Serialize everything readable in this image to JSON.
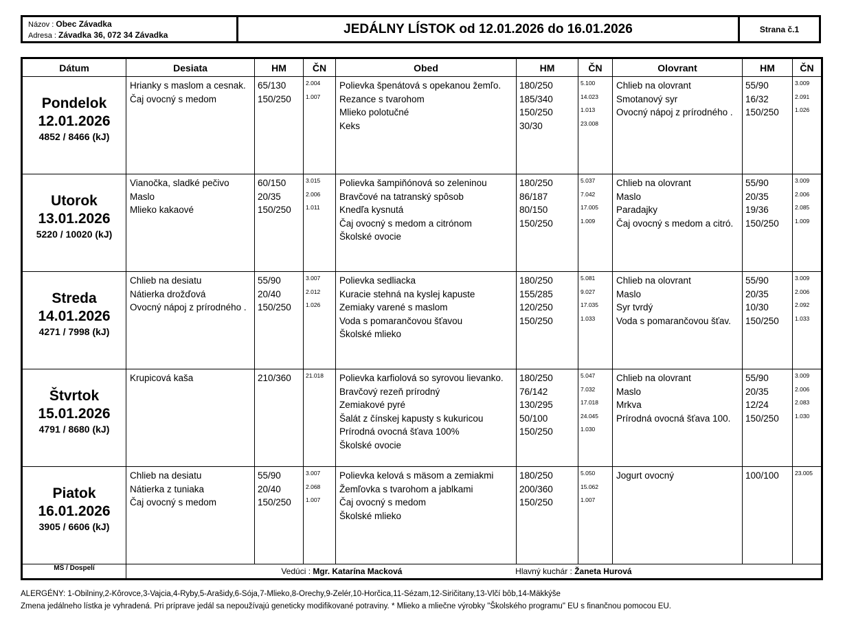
{
  "header": {
    "name_label": "Názov :",
    "name_value": "Obec Závadka",
    "address_label": "Adresa :",
    "address_value": "Závadka 36, 072 34 Závadka",
    "title": "JEDÁLNY LÍSTOK od 12.01.2026 do 16.01.2026",
    "page": "Strana č.1"
  },
  "table": {
    "columns": [
      "Dátum",
      "Desiata",
      "HM",
      "ČN",
      "Obed",
      "HM",
      "ČN",
      "Olovrant",
      "HM",
      "ČN"
    ],
    "days": [
      {
        "day": "Pondelok",
        "date": "12.01.2026",
        "energy": "4852 / 8466 (kJ)",
        "desiata": [
          {
            "name": "Hrianky s maslom a cesnak.",
            "hm": "65/130",
            "cn": "2.004"
          },
          {
            "name": "Čaj ovocný s medom",
            "hm": "150/250",
            "cn": "1.007"
          }
        ],
        "obed": [
          {
            "name": "Polievka špenátová s opekanou žemľo.",
            "hm": "180/250",
            "cn": "5.100"
          },
          {
            "name": "Rezance s tvarohom",
            "hm": "185/340",
            "cn": "14.023"
          },
          {
            "name": "Mlieko polotučné",
            "hm": "150/250",
            "cn": "1.013"
          },
          {
            "name": "Keks",
            "hm": "30/30",
            "cn": "23.008"
          }
        ],
        "olovrant": [
          {
            "name": "Chlieb na olovrant",
            "hm": "55/90",
            "cn": "3.009"
          },
          {
            "name": "Smotanový syr",
            "hm": "16/32",
            "cn": "2.091"
          },
          {
            "name": "Ovocný nápoj z prírodného .",
            "hm": "150/250",
            "cn": "1.026"
          }
        ]
      },
      {
        "day": "Utorok",
        "date": "13.01.2026",
        "energy": "5220 / 10020 (kJ)",
        "desiata": [
          {
            "name": "Vianočka, sladké pečivo",
            "hm": "60/150",
            "cn": "3.015"
          },
          {
            "name": "Maslo",
            "hm": "20/35",
            "cn": "2.006"
          },
          {
            "name": "Mlieko kakaové",
            "hm": "150/250",
            "cn": "1.011"
          }
        ],
        "obed": [
          {
            "name": "Polievka šampiňónová so zeleninou",
            "hm": "180/250",
            "cn": "5.037"
          },
          {
            "name": "Bravčové na tatranský spôsob",
            "hm": "86/187",
            "cn": "7.042"
          },
          {
            "name": "Knedľa kysnutá",
            "hm": "80/150",
            "cn": "17.005"
          },
          {
            "name": "Čaj ovocný s medom a citrónom",
            "hm": "150/250",
            "cn": "1.009"
          },
          {
            "name": "Školské ovocie",
            "hm": "",
            "cn": ""
          }
        ],
        "olovrant": [
          {
            "name": "Chlieb na olovrant",
            "hm": "55/90",
            "cn": "3.009"
          },
          {
            "name": "Maslo",
            "hm": "20/35",
            "cn": "2.006"
          },
          {
            "name": "Paradajky",
            "hm": "19/36",
            "cn": "2.085"
          },
          {
            "name": "Čaj ovocný s medom a citró.",
            "hm": "150/250",
            "cn": "1.009"
          }
        ]
      },
      {
        "day": "Streda",
        "date": "14.01.2026",
        "energy": "4271 / 7998 (kJ)",
        "desiata": [
          {
            "name": "Chlieb na desiatu",
            "hm": "55/90",
            "cn": "3.007"
          },
          {
            "name": "Nátierka drožďová",
            "hm": "20/40",
            "cn": "2.012"
          },
          {
            "name": "Ovocný nápoj z prírodného .",
            "hm": "150/250",
            "cn": "1.026"
          }
        ],
        "obed": [
          {
            "name": "Polievka sedliacka",
            "hm": "180/250",
            "cn": "5.081"
          },
          {
            "name": "Kuracie stehná na kyslej kapuste",
            "hm": "155/285",
            "cn": "9.027"
          },
          {
            "name": "Zemiaky varené s maslom",
            "hm": "120/250",
            "cn": "17.035"
          },
          {
            "name": "Voda s pomarančovou šťavou",
            "hm": "150/250",
            "cn": "1.033"
          },
          {
            "name": "Školské mlieko",
            "hm": "",
            "cn": ""
          }
        ],
        "olovrant": [
          {
            "name": "Chlieb na olovrant",
            "hm": "55/90",
            "cn": "3.009"
          },
          {
            "name": "Maslo",
            "hm": "20/35",
            "cn": "2.006"
          },
          {
            "name": "Syr tvrdý",
            "hm": "10/30",
            "cn": "2.092"
          },
          {
            "name": "Voda s pomarančovou šťav.",
            "hm": "150/250",
            "cn": "1.033"
          }
        ]
      },
      {
        "day": "Štvrtok",
        "date": "15.01.2026",
        "energy": "4791 / 8680 (kJ)",
        "desiata": [
          {
            "name": "Krupicová kaša",
            "hm": "210/360",
            "cn": "21.018"
          }
        ],
        "obed": [
          {
            "name": "Polievka karfiolová so syrovou lievanko.",
            "hm": "180/250",
            "cn": "5.047"
          },
          {
            "name": "Bravčový rezeň prírodný",
            "hm": "76/142",
            "cn": "7.032"
          },
          {
            "name": "Zemiakové pyré",
            "hm": "130/295",
            "cn": "17.018"
          },
          {
            "name": "Šalát z čínskej kapusty s kukuricou",
            "hm": "50/100",
            "cn": "24.045"
          },
          {
            "name": "Prírodná ovocná šťava 100%",
            "hm": "150/250",
            "cn": "1.030"
          },
          {
            "name": "Školské ovocie",
            "hm": "",
            "cn": ""
          }
        ],
        "olovrant": [
          {
            "name": "Chlieb na olovrant",
            "hm": "55/90",
            "cn": "3.009"
          },
          {
            "name": "Maslo",
            "hm": "20/35",
            "cn": "2.006"
          },
          {
            "name": "Mrkva",
            "hm": "12/24",
            "cn": "2.083"
          },
          {
            "name": "Prírodná ovocná šťava 100.",
            "hm": "150/250",
            "cn": "1.030"
          }
        ]
      },
      {
        "day": "Piatok",
        "date": "16.01.2026",
        "energy": "3905 / 6606 (kJ)",
        "desiata": [
          {
            "name": "Chlieb na desiatu",
            "hm": "55/90",
            "cn": "3.007"
          },
          {
            "name": "Nátierka z tuniaka",
            "hm": "20/40",
            "cn": "2.068"
          },
          {
            "name": "Čaj ovocný s medom",
            "hm": "150/250",
            "cn": "1.007"
          }
        ],
        "obed": [
          {
            "name": "Polievka kelová s mäsom a zemiakmi",
            "hm": "180/250",
            "cn": "5.050"
          },
          {
            "name": "Žemľovka s tvarohom a jablkami",
            "hm": "200/360",
            "cn": "15.062"
          },
          {
            "name": "Čaj ovocný s medom",
            "hm": "150/250",
            "cn": "1.007"
          },
          {
            "name": "Školské mlieko",
            "hm": "",
            "cn": ""
          }
        ],
        "olovrant": [
          {
            "name": "Jogurt ovocný",
            "hm": "100/100",
            "cn": "23.005"
          }
        ]
      }
    ],
    "footer": {
      "left": "MŠ / Dospelí",
      "manager_label": "Vedúci :",
      "manager_name": "Mgr. Katarína Macková",
      "chef_label": "Hlavný kuchár :",
      "chef_name": "Žaneta Hurová"
    }
  },
  "notes": {
    "allergens": "ALERGÉNY: 1-Obilniny,2-Kôrovce,3-Vajcia,4-Ryby,5-Arašidy,6-Sója,7-Mlieko,8-Orechy,9-Zelér,10-Horčica,11-Sézam,12-Siričitany,13-Vlčí bôb,14-Mäkkýše",
    "disclaimer": "Zmena jedálneho lístka je vyhradená. Pri príprave jedál sa nepoužívajú geneticky modifikované potraviny. * Mlieko a mliečne výrobky \"Školského programu\" EU s finančnou pomocou EU."
  }
}
